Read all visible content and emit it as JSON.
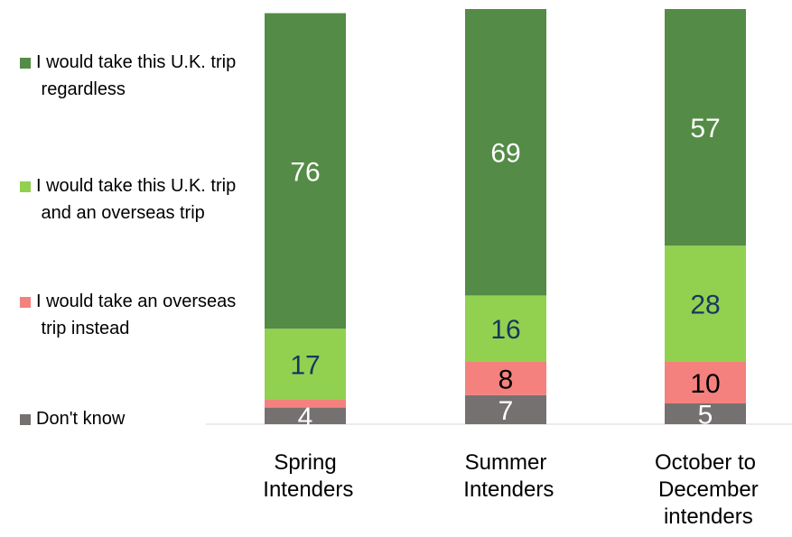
{
  "chart_data": {
    "type": "stacked_bar",
    "categories": [
      "Spring Intenders",
      "Summer Intenders",
      "October to December intenders"
    ],
    "series": [
      {
        "name": "Don't know",
        "color": "#767171",
        "label_color": "#ffffff",
        "values": [
          4,
          7,
          5
        ]
      },
      {
        "name": "I would take an overseas trip instead",
        "color": "#f4817d",
        "label_color": "#000000",
        "values": [
          2,
          8,
          10
        ],
        "value_labels": [
          null,
          "8",
          "10"
        ]
      },
      {
        "name": "I would take this U.K. trip and an overseas trip",
        "color": "#92d050",
        "label_color": "#17375e",
        "values": [
          17,
          16,
          28
        ]
      },
      {
        "name": "I would take this U.K. trip regardless",
        "color": "#548b46",
        "label_color": "#ffffff",
        "values": [
          76,
          69,
          57
        ]
      }
    ],
    "ylim": [
      0,
      100
    ],
    "legend": "left"
  }
}
